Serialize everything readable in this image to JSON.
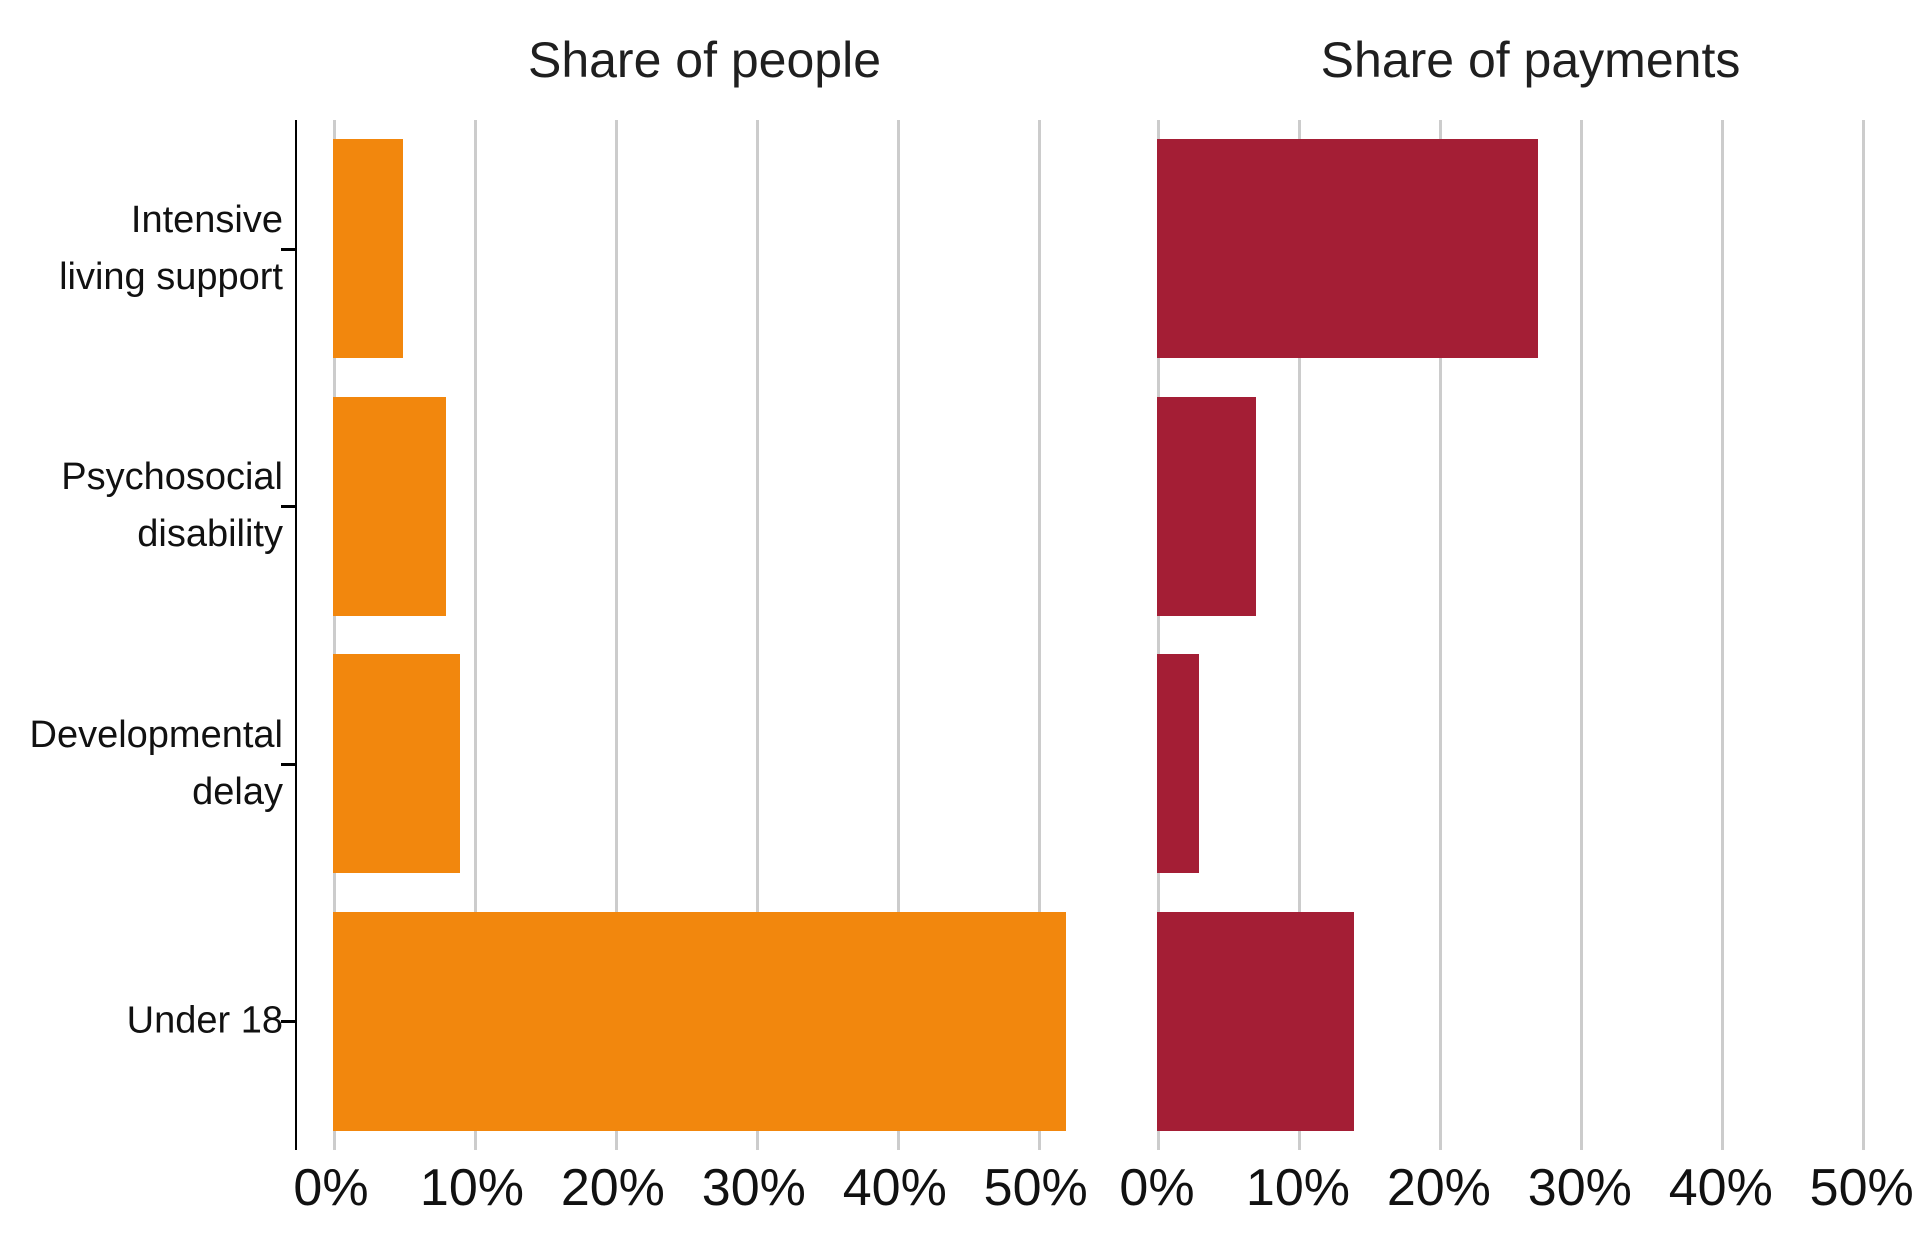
{
  "page": {
    "background": "#FFFFFF"
  },
  "chart_data": {
    "type": "bar",
    "orientation": "horizontal",
    "value_unit": "%",
    "categories": [
      "Intensive living support",
      "Psychosocial disability",
      "Developmental delay",
      "Under 18"
    ],
    "category_label_lines": [
      [
        "Intensive",
        "living support"
      ],
      [
        "Psychosocial",
        "disability"
      ],
      [
        "Developmental",
        "delay"
      ],
      [
        "Under 18"
      ]
    ],
    "x_ticks": [
      0,
      10,
      20,
      30,
      40,
      50
    ],
    "x_tick_labels": [
      "0%",
      "10%",
      "20%",
      "30%",
      "40%",
      "50%"
    ],
    "xlim": [
      0,
      53
    ],
    "grid": true,
    "gridline_color": "#CCCCCC",
    "axis_color": "#000000",
    "legend": "none",
    "panels": [
      {
        "title": "Share of people",
        "color": "#F2870D",
        "values": [
          5,
          8,
          9,
          52
        ]
      },
      {
        "title": "Share of payments",
        "color": "#A41E35",
        "values": [
          27,
          7,
          3,
          14
        ]
      }
    ]
  }
}
